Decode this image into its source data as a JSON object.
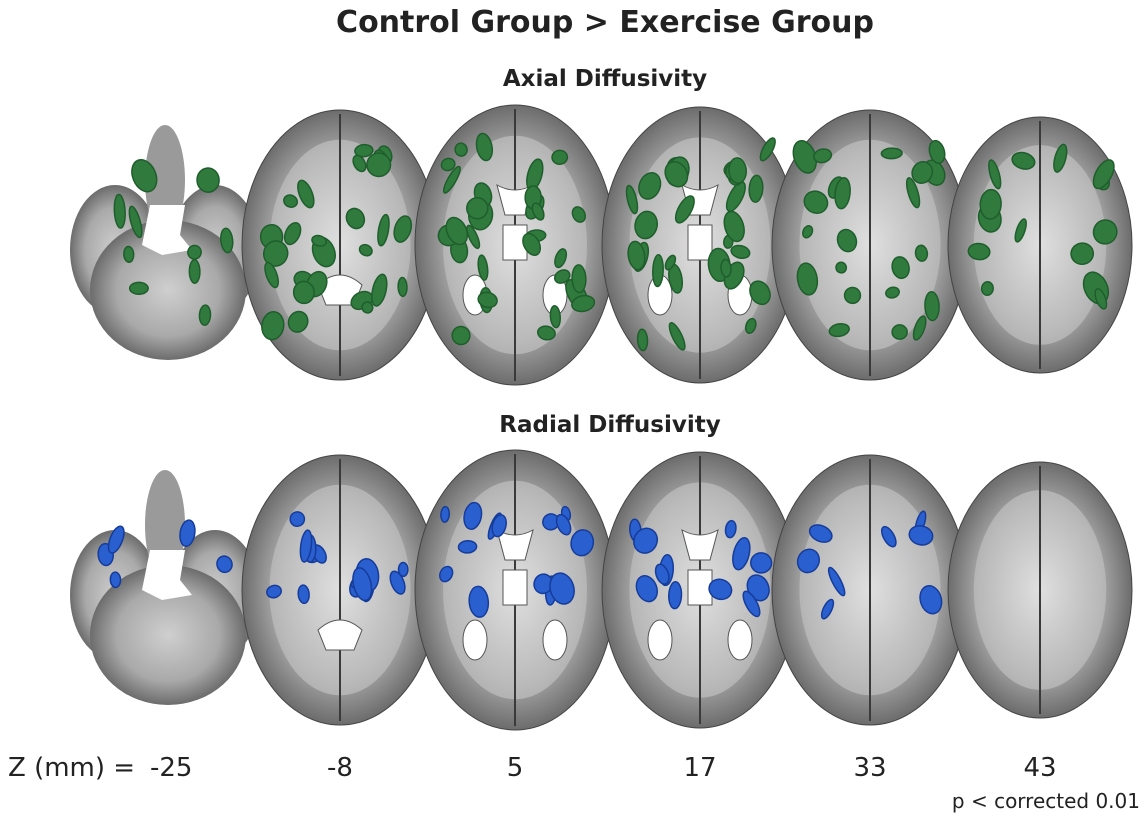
{
  "title": "Control Group > Exercise Group",
  "panels": [
    {
      "label": "Axial Diffusivity"
    },
    {
      "label": "Radial Diffusivity"
    }
  ],
  "z_axis": {
    "label": "Z (mm) =",
    "slices": [
      -25,
      -8,
      5,
      17,
      33,
      43
    ]
  },
  "footnote": "p < corrected 0.01"
}
